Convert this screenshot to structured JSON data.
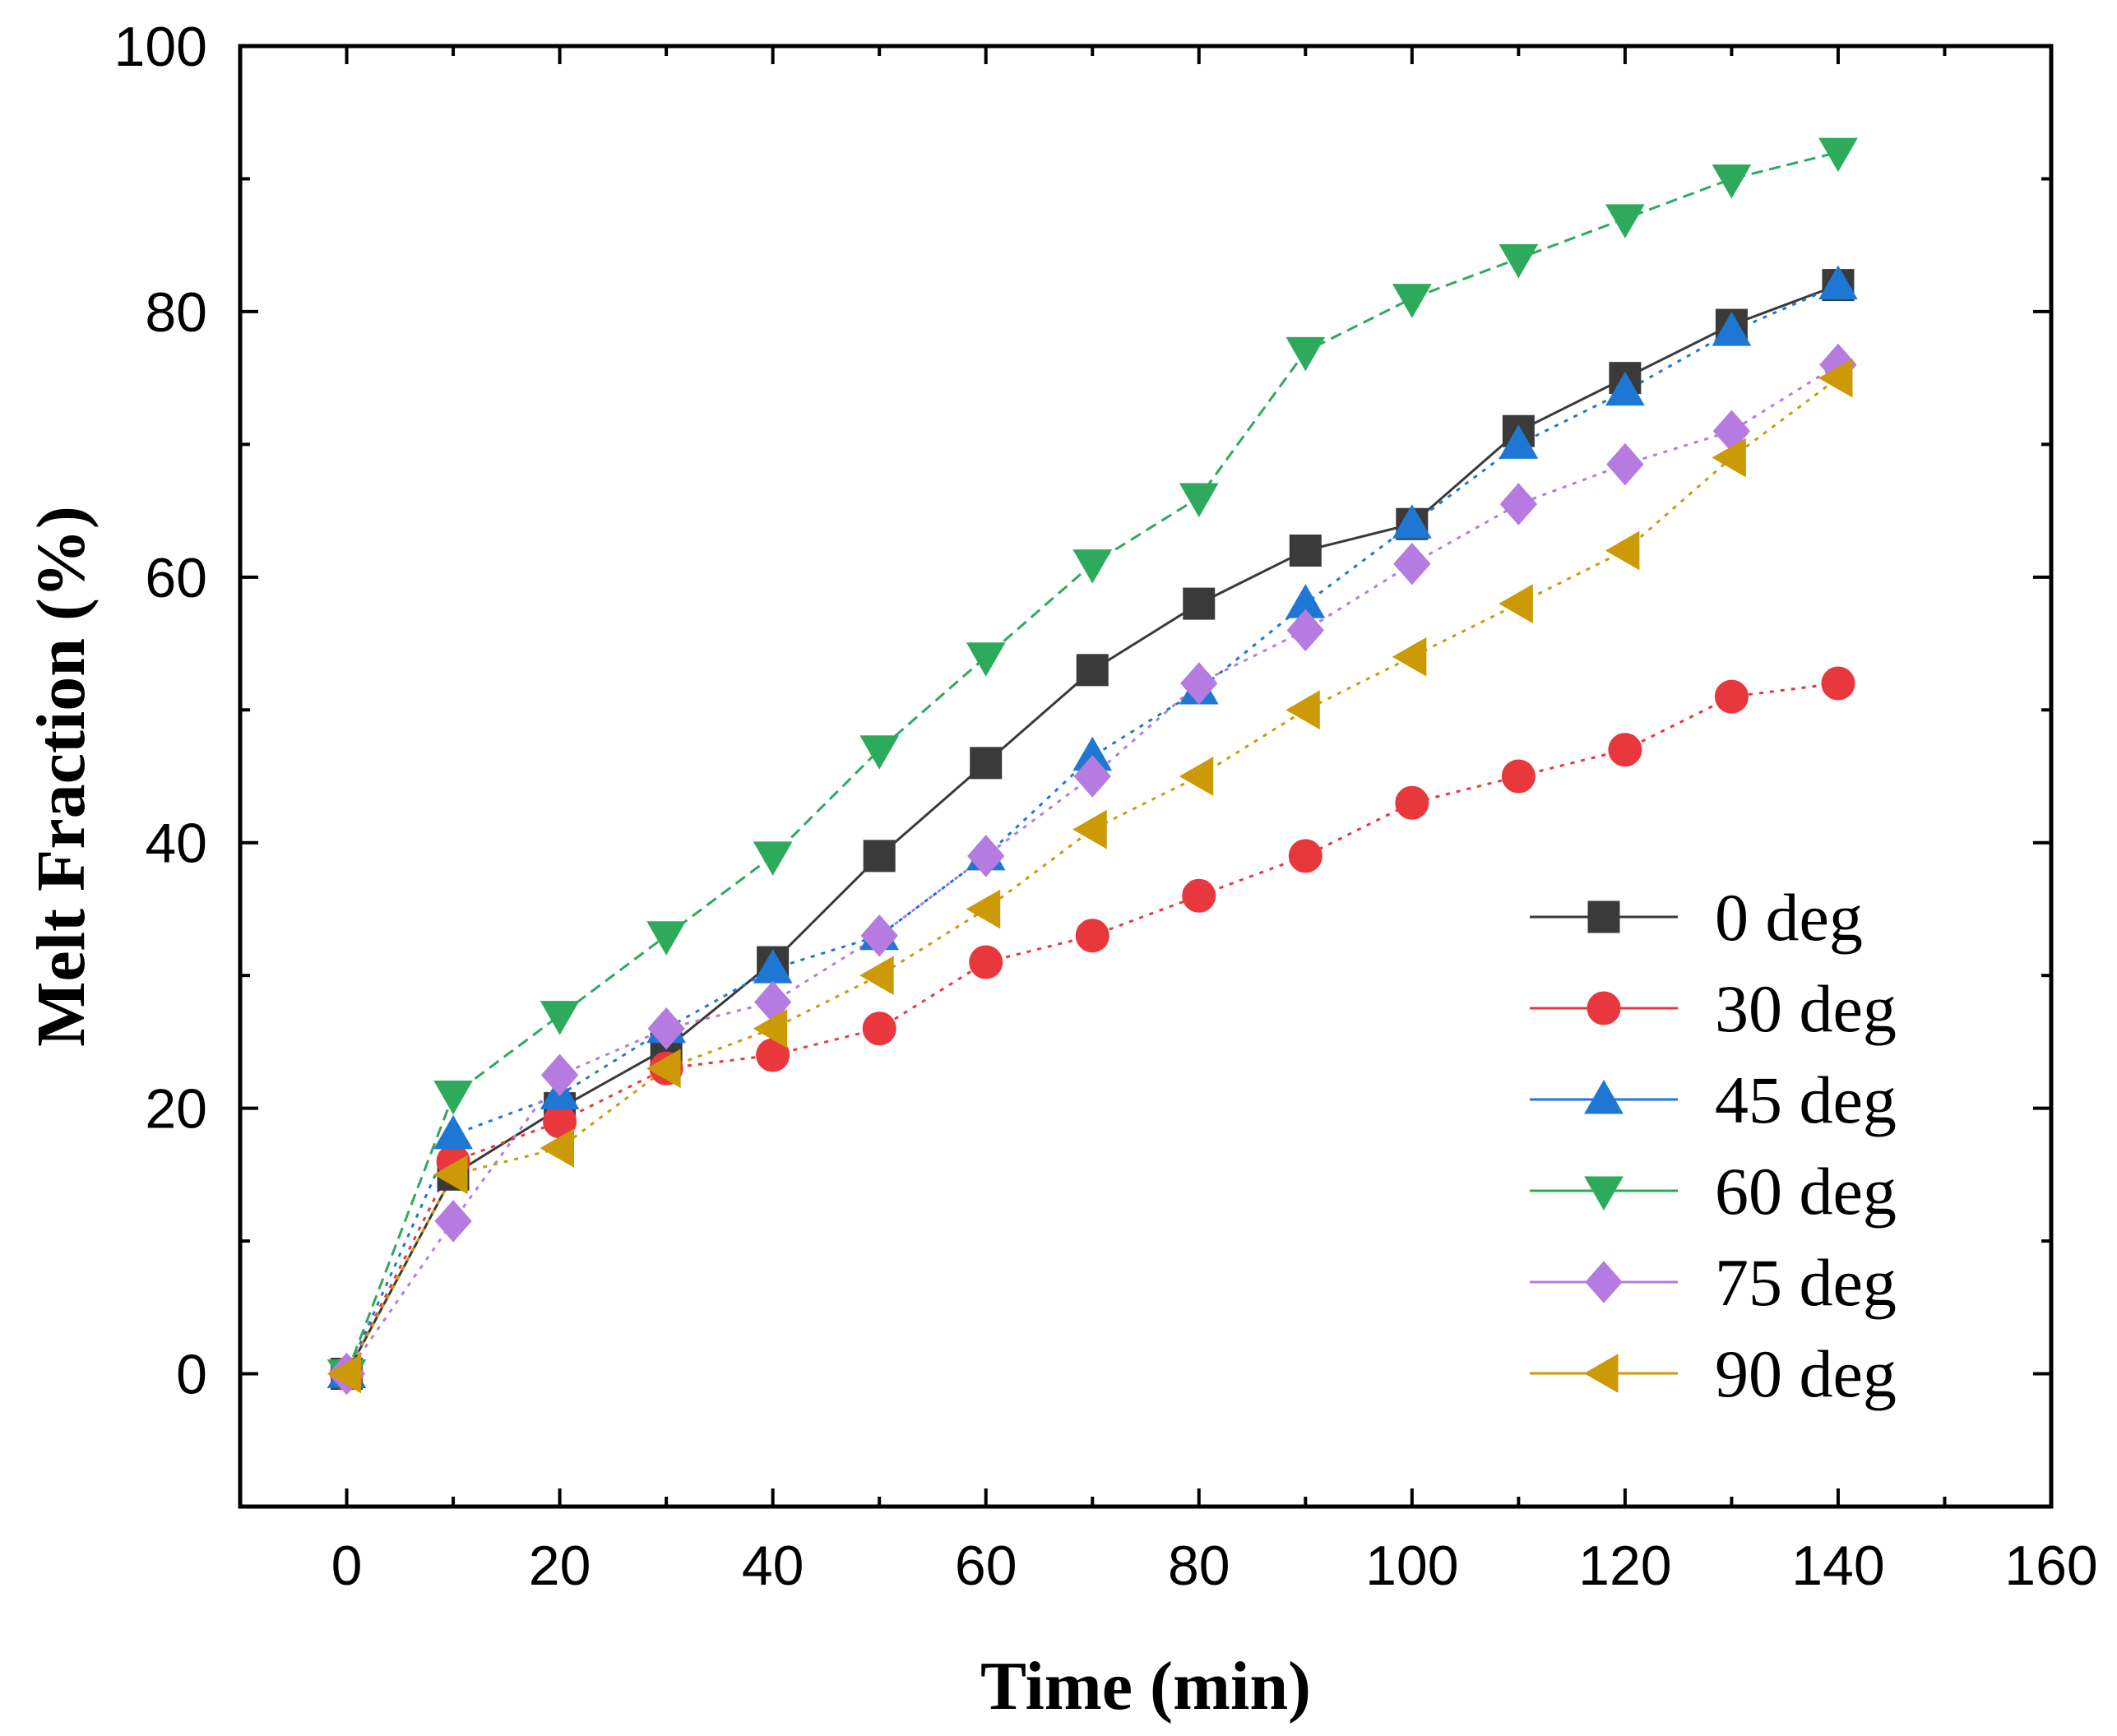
{
  "chart_data": {
    "type": "line",
    "title": "",
    "xlabel": "Time (min)",
    "ylabel": "Melt Fraction (%)",
    "xlim": [
      -10,
      160
    ],
    "ylim": [
      -10,
      100
    ],
    "xticks": [
      0,
      20,
      40,
      60,
      80,
      100,
      120,
      140,
      160
    ],
    "yticks": [
      0,
      20,
      40,
      60,
      80,
      100
    ],
    "grid": false,
    "legend_position": "bottom-right",
    "x": [
      0,
      10,
      20,
      30,
      40,
      50,
      60,
      70,
      80,
      90,
      100,
      110,
      120,
      130,
      140
    ],
    "series": [
      {
        "name": "0 deg",
        "marker": "square",
        "color": "#3a3a3a",
        "line": "solid",
        "values": [
          0,
          15,
          20,
          24.5,
          31,
          39,
          46,
          53,
          58,
          62,
          64,
          71,
          75,
          79,
          82
        ]
      },
      {
        "name": "30 deg",
        "marker": "circle",
        "color": "#e8383d",
        "line": "dotted",
        "values": [
          0,
          16,
          19,
          23,
          24,
          26,
          31,
          33,
          36,
          39,
          43,
          45,
          47,
          51,
          52
        ]
      },
      {
        "name": "45 deg",
        "marker": "triangle-up",
        "color": "#1f77d4",
        "line": "dotted",
        "values": [
          0,
          18,
          21,
          26,
          30.5,
          33,
          39,
          46.5,
          51.5,
          58,
          64,
          70,
          74,
          78.5,
          82
        ]
      },
      {
        "name": "60 deg",
        "marker": "triangle-down",
        "color": "#2eaa5c",
        "line": "dashed",
        "values": [
          0,
          21,
          27,
          33,
          39,
          47,
          54,
          61,
          66,
          77,
          81,
          84,
          87,
          90,
          92
        ]
      },
      {
        "name": "75 deg",
        "marker": "diamond",
        "color": "#b57be0",
        "line": "dotted",
        "values": [
          0,
          11.5,
          22.5,
          26,
          28,
          33,
          39,
          45,
          52,
          56,
          61,
          65.5,
          68.5,
          71,
          76
        ]
      },
      {
        "name": "90 deg",
        "marker": "triangle-left",
        "color": "#cc9a06",
        "line": "dotted",
        "values": [
          0,
          15,
          17,
          23,
          26,
          30,
          35,
          41,
          45,
          50,
          54,
          58,
          62,
          69,
          75
        ]
      }
    ]
  }
}
